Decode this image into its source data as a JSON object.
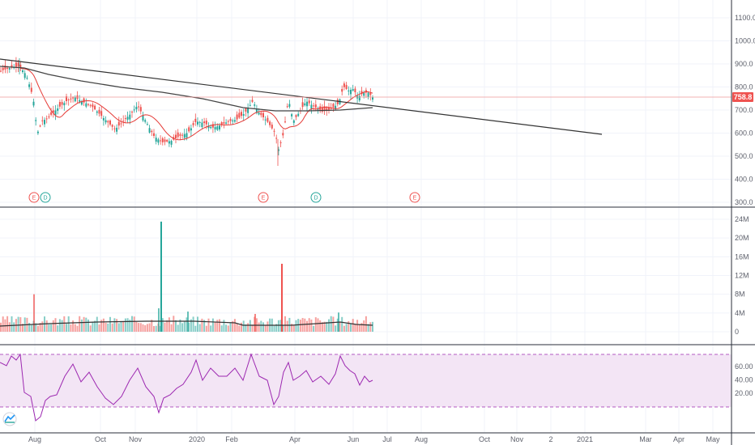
{
  "colors": {
    "up": "#26a69a",
    "down": "#ef5350",
    "ma_fast": "#e53935",
    "ma_slow": "#444444",
    "trendline": "#333333",
    "price_line": "#ef9a9a",
    "price_badge": "#ef5350",
    "rsi_line": "#9c27b0",
    "rsi_band": "#f3e5f5",
    "grid": "#f0f3fa",
    "border": "#2a2e39"
  },
  "icons": {
    "logo": "tradingview-logo-icon"
  },
  "price_axis": {
    "ticks": [
      "1100.0",
      "1000.0",
      "900.0",
      "800.0",
      "700.0",
      "600.0",
      "500.0",
      "400.0",
      "300.0"
    ],
    "current_price": "758.8"
  },
  "volume_axis": {
    "ticks": [
      "24M",
      "20M",
      "16M",
      "12M",
      "8M",
      "4M",
      "0"
    ]
  },
  "rsi_axis": {
    "ticks": [
      "60.00",
      "40.00",
      "20.00"
    ]
  },
  "time_axis": {
    "labels": [
      "Aug",
      "Oct",
      "Nov",
      "2020",
      "Feb",
      "Apr",
      "Jun",
      "Jul",
      "Aug",
      "Oct",
      "Nov",
      "2",
      "2021",
      "Mar",
      "Apr",
      "May"
    ]
  },
  "events": [
    "E",
    "D",
    "E",
    "D",
    "E"
  ],
  "chart_data": {
    "type": "candlestick",
    "price_range": [
      300,
      1100
    ],
    "current_price": 758.8,
    "price_series_approx": [
      {
        "date": "2019-07",
        "close": 880
      },
      {
        "date": "2019-08",
        "close": 620
      },
      {
        "date": "2019-09",
        "close": 750
      },
      {
        "date": "2019-10",
        "close": 640
      },
      {
        "date": "2019-11",
        "close": 700
      },
      {
        "date": "2019-12",
        "close": 560
      },
      {
        "date": "2020-01",
        "close": 640
      },
      {
        "date": "2020-02",
        "close": 700
      },
      {
        "date": "2020-03",
        "close": 520
      },
      {
        "date": "2020-04",
        "close": 720
      },
      {
        "date": "2020-05",
        "close": 700
      },
      {
        "date": "2020-06",
        "close": 790
      },
      {
        "date": "2020-06-end",
        "close": 758.8
      }
    ],
    "volume_range": [
      0,
      24000000
    ],
    "volume_spikes": [
      {
        "date": "2019-12",
        "volume": 23500000
      },
      {
        "date": "2020-03",
        "volume": 14500000
      }
    ],
    "rsi_range": [
      15,
      75
    ],
    "rsi_band": [
      30,
      70
    ]
  }
}
